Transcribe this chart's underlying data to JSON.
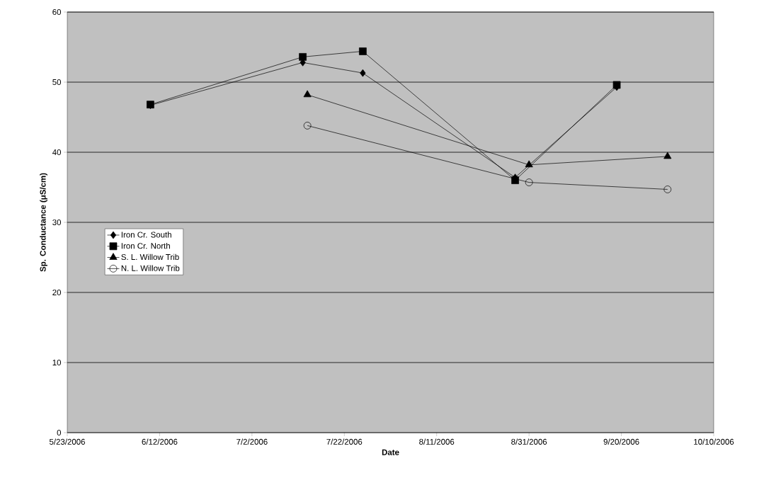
{
  "chart_data": {
    "type": "line",
    "xlabel": "Date",
    "ylabel": "Sp. Conductance (μS/cm)",
    "xlim": [
      "2006-05-23",
      "2006-10-10"
    ],
    "ylim": [
      0,
      60
    ],
    "xticks": [
      {
        "value": "2006-05-23",
        "label": "5/23/2006"
      },
      {
        "value": "2006-06-12",
        "label": "6/12/2006"
      },
      {
        "value": "2006-07-02",
        "label": "7/2/2006"
      },
      {
        "value": "2006-07-22",
        "label": "7/22/2006"
      },
      {
        "value": "2006-08-11",
        "label": "8/11/2006"
      },
      {
        "value": "2006-08-31",
        "label": "8/31/2006"
      },
      {
        "value": "2006-09-20",
        "label": "9/20/2006"
      },
      {
        "value": "2006-10-10",
        "label": "10/10/2006"
      }
    ],
    "yticks": [
      0,
      10,
      20,
      30,
      40,
      50,
      60
    ],
    "grid": "y",
    "legend": "left",
    "line_style": "solid",
    "series": [
      {
        "name": "Iron Cr. South",
        "color": "#000000",
        "marker": "diamond",
        "x": [
          "2006-06-10",
          "2006-07-13",
          "2006-07-26",
          "2006-08-28",
          "2006-09-19"
        ],
        "values": [
          46.7,
          52.8,
          51.3,
          36.4,
          49.3
        ]
      },
      {
        "name": "Iron Cr. North",
        "color": "#000000",
        "marker": "square",
        "x": [
          "2006-06-10",
          "2006-07-13",
          "2006-07-26",
          "2006-08-28",
          "2006-09-19"
        ],
        "values": [
          46.8,
          53.6,
          54.4,
          36.0,
          49.6
        ]
      },
      {
        "name": "S. L. Willow Trib",
        "color": "#000000",
        "marker": "triangle",
        "x": [
          "2006-07-14",
          "2006-08-31",
          "2006-09-30"
        ],
        "values": [
          48.2,
          38.2,
          39.4
        ]
      },
      {
        "name": "N. L. Willow Trib",
        "color": "#000000",
        "marker": "circle",
        "x": [
          "2006-07-14",
          "2006-08-31",
          "2006-09-30"
        ],
        "values": [
          43.8,
          35.7,
          34.7
        ]
      }
    ]
  }
}
